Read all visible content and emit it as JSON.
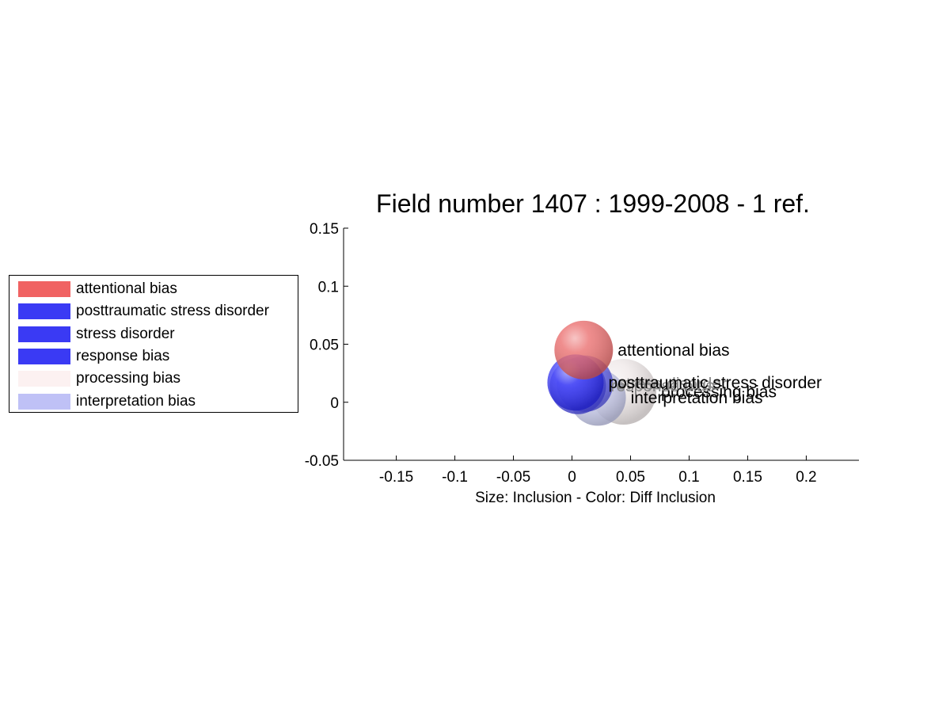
{
  "chart_data": {
    "type": "scatter",
    "title": "Field number 1407 : 1999-2008  - 1 ref.",
    "xlabel": "Size: Inclusion - Color: Diff Inclusion",
    "ylabel": "",
    "xlim": [
      -0.195,
      0.245
    ],
    "ylim": [
      -0.05,
      0.15
    ],
    "xticks": [
      -0.15,
      -0.1,
      -0.05,
      0,
      0.05,
      0.1,
      0.15,
      0.2
    ],
    "xtick_labels": [
      "-0.15",
      "-0.1",
      "-0.05",
      "0",
      "0.05",
      "0.1",
      "0.15",
      "0.2"
    ],
    "yticks": [
      -0.05,
      0,
      0.05,
      0.1,
      0.15
    ],
    "ytick_labels": [
      "-0.05",
      "0",
      "0.05",
      "0.1",
      "0.15"
    ],
    "grid": false,
    "legend_position": "left",
    "series": [
      {
        "name": "processing bias",
        "x": 0.044,
        "y": 0.009,
        "radius": 0.028,
        "color": "#ede6e6",
        "label_color": "#000000"
      },
      {
        "name": "interpretation bias",
        "x": 0.022,
        "y": 0.004,
        "radius": 0.024,
        "color": "#c4c8ee",
        "label_color": "#000000"
      },
      {
        "name": "stress disorder",
        "x": 0.011,
        "y": 0.016,
        "radius": 0.024,
        "color": "#5a5af0",
        "label_color": "#888888"
      },
      {
        "name": "response bias",
        "x": 0.005,
        "y": 0.014,
        "radius": 0.024,
        "color": "#4d4df0",
        "label_color": "#888888"
      },
      {
        "name": "posttraumatic stress disorder",
        "x": 0.003,
        "y": 0.017,
        "radius": 0.024,
        "color": "#2b2bf5",
        "label_color": "#000000"
      },
      {
        "name": "attentional bias",
        "x": 0.01,
        "y": 0.045,
        "radius": 0.025,
        "color": "#e85e5e",
        "label_color": "#000000"
      }
    ],
    "legend": [
      {
        "label": "attentional bias",
        "color": "#f06262"
      },
      {
        "label": "posttraumatic stress disorder",
        "color": "#3a3af4"
      },
      {
        "label": "stress disorder",
        "color": "#3a3af4"
      },
      {
        "label": "response bias",
        "color": "#3a3af4"
      },
      {
        "label": "processing bias",
        "color": "#fcf1f1"
      },
      {
        "label": "interpretation bias",
        "color": "#bfc1f6"
      }
    ]
  }
}
